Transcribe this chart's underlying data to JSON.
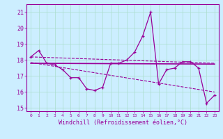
{
  "xlabel": "Windchill (Refroidissement éolien,°C)",
  "background_color": "#cceeff",
  "line_color": "#990099",
  "hours": [
    0,
    1,
    2,
    3,
    4,
    5,
    6,
    7,
    8,
    9,
    10,
    11,
    12,
    13,
    14,
    15,
    16,
    17,
    18,
    19,
    20,
    21,
    22,
    23
  ],
  "temp_line": [
    18.2,
    18.6,
    17.8,
    17.7,
    17.4,
    16.9,
    16.9,
    16.2,
    16.1,
    16.3,
    17.8,
    17.8,
    18.0,
    18.5,
    19.5,
    21.0,
    16.5,
    17.4,
    17.5,
    17.9,
    17.9,
    17.5,
    15.3,
    15.8
  ],
  "trend1_x": [
    0,
    23
  ],
  "trend1_y": [
    18.2,
    17.8
  ],
  "trend2_x": [
    0,
    23
  ],
  "trend2_y": [
    17.8,
    17.75
  ],
  "trend3_x": [
    0,
    23
  ],
  "trend3_y": [
    17.85,
    16.0
  ],
  "ylim": [
    14.8,
    21.5
  ],
  "yticks": [
    15,
    16,
    17,
    18,
    19,
    20,
    21
  ],
  "xticks": [
    0,
    1,
    2,
    3,
    4,
    5,
    6,
    7,
    8,
    9,
    10,
    11,
    12,
    13,
    14,
    15,
    16,
    17,
    18,
    19,
    20,
    21,
    22,
    23
  ]
}
